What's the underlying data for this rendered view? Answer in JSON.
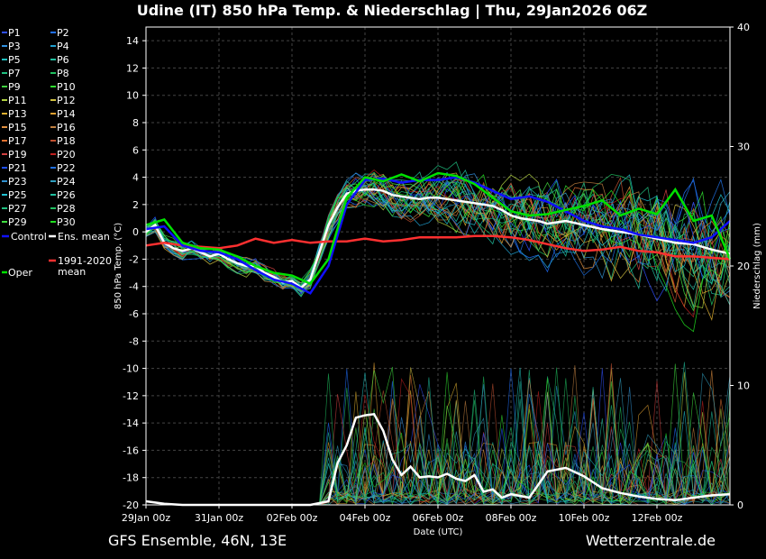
{
  "chart_data": {
    "type": "line",
    "title": "Udine  (IT)  850 hPa Temp. & Niederschlag | Thu, 29Jan2026 06Z",
    "xlabel": "Date (UTC)",
    "ylabel": "850 hPa Temp. (°C)",
    "y2label": "Niederschlag (mm)",
    "ylim": [
      -20,
      15
    ],
    "y2lim": [
      0,
      40
    ],
    "xlim_days": [
      0,
      16
    ],
    "x_ticks": [
      {
        "day": 0,
        "label": "29Jan 00z"
      },
      {
        "day": 2,
        "label": "31Jan 00z"
      },
      {
        "day": 4,
        "label": "02Feb 00z"
      },
      {
        "day": 6,
        "label": "04Feb 00z"
      },
      {
        "day": 8,
        "label": "06Feb 00z"
      },
      {
        "day": 10,
        "label": "08Feb 00z"
      },
      {
        "day": 12,
        "label": "10Feb 00z"
      },
      {
        "day": 14,
        "label": "12Feb 00z"
      }
    ],
    "y_ticks": [
      14,
      12,
      10,
      8,
      6,
      4,
      2,
      0,
      -2,
      -4,
      -6,
      -8,
      -10,
      -12,
      -14,
      -16,
      -18,
      -20
    ],
    "y2_ticks": [
      0,
      10,
      20,
      30,
      40
    ],
    "grid": true,
    "legend_position": "left",
    "legend": [
      {
        "label": "P1",
        "color": "#3050ff"
      },
      {
        "label": "P2",
        "color": "#2070ff"
      },
      {
        "label": "P3",
        "color": "#3090e0"
      },
      {
        "label": "P4",
        "color": "#20a0d0"
      },
      {
        "label": "P5",
        "color": "#20c0c0"
      },
      {
        "label": "P6",
        "color": "#20c0a0"
      },
      {
        "label": "P7",
        "color": "#20c080"
      },
      {
        "label": "P8",
        "color": "#20c060"
      },
      {
        "label": "P9",
        "color": "#40d040"
      },
      {
        "label": "P10",
        "color": "#30e030"
      },
      {
        "label": "P11",
        "color": "#b0d040"
      },
      {
        "label": "P12",
        "color": "#d0c040"
      },
      {
        "label": "P13",
        "color": "#e0b030"
      },
      {
        "label": "P14",
        "color": "#e0a030"
      },
      {
        "label": "P15",
        "color": "#e09040"
      },
      {
        "label": "P16",
        "color": "#c08040"
      },
      {
        "label": "P17",
        "color": "#e07030"
      },
      {
        "label": "P18",
        "color": "#c05030"
      },
      {
        "label": "P19",
        "color": "#d04040"
      },
      {
        "label": "P20",
        "color": "#c02020"
      },
      {
        "label": "P21",
        "color": "#2050ff"
      },
      {
        "label": "P22",
        "color": "#2070e0"
      },
      {
        "label": "P23",
        "color": "#3090d0"
      },
      {
        "label": "P24",
        "color": "#30a0c0"
      },
      {
        "label": "P25",
        "color": "#20c0d0"
      },
      {
        "label": "P26",
        "color": "#20c0a0"
      },
      {
        "label": "P27",
        "color": "#20c080"
      },
      {
        "label": "P28",
        "color": "#20c060"
      },
      {
        "label": "P29",
        "color": "#40e040"
      },
      {
        "label": "P30",
        "color": "#20e020"
      },
      {
        "label": "Control",
        "color": "#1010ff"
      },
      {
        "label": "Ens. mean",
        "color": "#ffffff"
      },
      {
        "label": "Oper",
        "color": "#00e000"
      },
      {
        "label": "1991-2020 mean",
        "color": "#ff3030"
      }
    ],
    "series": [
      {
        "name": "Ens. mean",
        "color": "#ffffff",
        "x": [
          0,
          0.25,
          0.5,
          0.75,
          1,
          1.25,
          1.5,
          1.75,
          2,
          2.25,
          2.5,
          2.75,
          3,
          3.25,
          3.5,
          3.75,
          4,
          4.25,
          4.5,
          4.75,
          5,
          5.25,
          5.5,
          5.75,
          6,
          6.25,
          6.5,
          6.75,
          7,
          7.25,
          7.5,
          7.75,
          8,
          8.25,
          8.5,
          8.75,
          9,
          9.25,
          9.5,
          9.75,
          10,
          10.25,
          10.5,
          10.75,
          11,
          11.5,
          12,
          12.5,
          13,
          13.5,
          14,
          14.5,
          15,
          15.5,
          16
        ],
        "y": [
          0,
          0.5,
          -0.8,
          -1.2,
          -1.4,
          -1.2,
          -1.5,
          -1.8,
          -1.6,
          -2,
          -2.3,
          -2.5,
          -2.5,
          -3,
          -3.3,
          -3.7,
          -3.6,
          -4.1,
          -3.5,
          -1.5,
          0.5,
          1.8,
          2.8,
          3,
          3.1,
          3.1,
          3,
          2.7,
          2.6,
          2.5,
          2.4,
          2.5,
          2.5,
          2.4,
          2.3,
          2.2,
          2.1,
          2,
          1.9,
          1.6,
          1.2,
          1,
          0.9,
          0.8,
          0.6,
          0.8,
          0.5,
          0.2,
          0,
          -0.2,
          -0.5,
          -0.8,
          -0.9,
          -1.3,
          -1.6
        ]
      },
      {
        "name": "1991-2020 mean",
        "color": "#ff3030",
        "x": [
          0,
          0.5,
          1,
          1.5,
          2,
          2.5,
          3,
          3.5,
          4,
          4.5,
          5,
          5.5,
          6,
          6.5,
          7,
          7.5,
          8,
          8.5,
          9,
          9.5,
          10,
          10.5,
          11,
          11.5,
          12,
          12.5,
          13,
          13.5,
          14,
          14.5,
          15,
          15.5,
          16
        ],
        "y": [
          -1,
          -0.8,
          -1,
          -1.1,
          -1.2,
          -1,
          -0.5,
          -0.8,
          -0.6,
          -0.8,
          -0.7,
          -0.7,
          -0.5,
          -0.7,
          -0.6,
          -0.4,
          -0.4,
          -0.4,
          -0.3,
          -0.3,
          -0.4,
          -0.6,
          -0.9,
          -1.2,
          -1.4,
          -1.3,
          -1.1,
          -1.4,
          -1.5,
          -1.8,
          -1.8,
          -1.9,
          -2
        ]
      },
      {
        "name": "Control",
        "color": "#1010ff",
        "x": [
          0,
          0.5,
          1,
          1.5,
          2,
          2.5,
          3,
          3.5,
          4,
          4.5,
          5,
          5.5,
          6,
          6.5,
          7,
          7.5,
          8,
          8.5,
          9,
          9.5,
          10,
          10.5,
          11,
          11.5,
          12,
          12.5,
          13,
          13.5,
          14,
          14.5,
          15,
          15.5,
          16
        ],
        "y": [
          0.2,
          0.4,
          -1,
          -1.4,
          -1.5,
          -2,
          -2.8,
          -3.5,
          -3.8,
          -4.5,
          -2.5,
          2,
          3.8,
          3.9,
          3.6,
          3.8,
          3.8,
          4,
          3.6,
          3,
          2.4,
          2.6,
          2.2,
          1.5,
          0.8,
          0.4,
          0.2,
          -0.2,
          -0.4,
          -0.6,
          -0.8,
          -0.4,
          0.8
        ]
      },
      {
        "name": "Oper",
        "color": "#00e000",
        "x": [
          0,
          0.5,
          1,
          1.5,
          2,
          2.5,
          3,
          3.5,
          4,
          4.5,
          5,
          5.5,
          6,
          6.5,
          7,
          7.5,
          8,
          8.5,
          9,
          9.5,
          10,
          10.5,
          11,
          11.5,
          12,
          12.5,
          13,
          13.5,
          14,
          14.5,
          15,
          15.5,
          16
        ],
        "y": [
          0.5,
          0.9,
          -0.8,
          -1.2,
          -1.3,
          -1.8,
          -2.5,
          -3,
          -3.2,
          -3.8,
          -2,
          2.5,
          4,
          3.7,
          4.2,
          3.7,
          4.3,
          4.1,
          3.5,
          2.5,
          1.5,
          1.2,
          1.3,
          1.6,
          1.9,
          2.3,
          1.2,
          1.7,
          1.3,
          3.1,
          0.8,
          1.2,
          -2
        ]
      }
    ],
    "bars_precip": [
      {
        "name": "Ens. mean",
        "color": "#ffffff",
        "x": [
          0,
          0.5,
          1,
          1.5,
          2,
          2.5,
          3,
          3.5,
          4,
          4.5,
          5,
          5.25,
          5.5,
          5.75,
          6,
          6.25,
          6.5,
          6.75,
          7,
          7.25,
          7.5,
          7.75,
          8,
          8.25,
          8.5,
          8.75,
          9,
          9.25,
          9.5,
          9.75,
          10,
          10.5,
          11,
          11.5,
          12,
          12.5,
          13,
          13.5,
          14,
          14.5,
          15,
          15.5,
          16
        ],
        "y": [
          0.3,
          0.1,
          0,
          0,
          0,
          0,
          0,
          0,
          0,
          0,
          0.3,
          3.5,
          5,
          7.3,
          7.5,
          7.6,
          6.2,
          3.8,
          2.5,
          3.2,
          2.3,
          2.4,
          2.3,
          2.6,
          2.2,
          2,
          2.5,
          1.1,
          1.3,
          0.6,
          0.9,
          0.6,
          2.8,
          3.1,
          2.4,
          1.4,
          1,
          0.7,
          0.5,
          0.4,
          0.6,
          0.8,
          0.9
        ]
      }
    ]
  },
  "footer": {
    "model": "GFS Ensemble, 46N, 13E",
    "site": "Wetterzentrale.de"
  }
}
